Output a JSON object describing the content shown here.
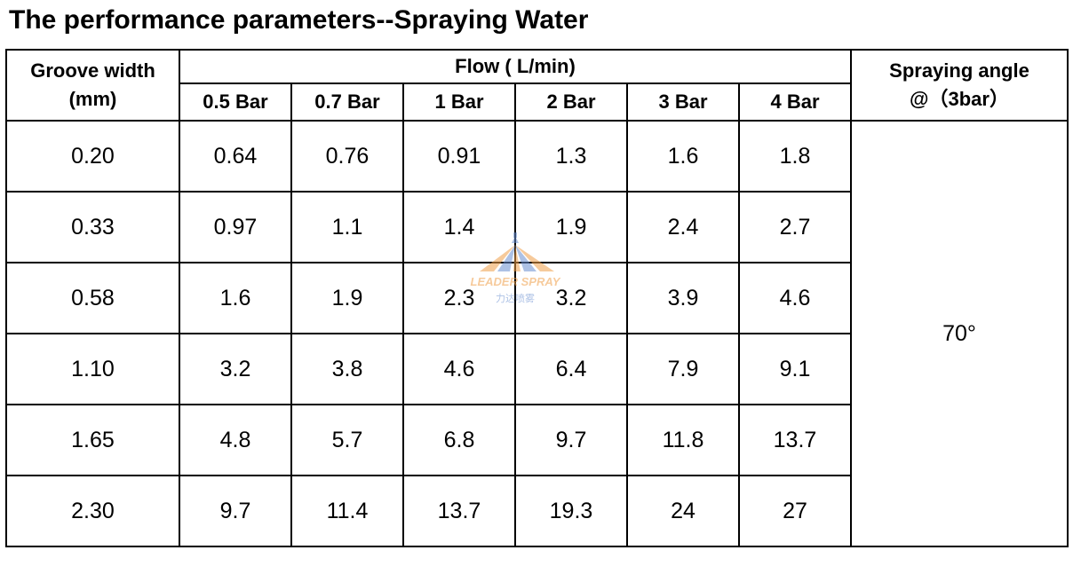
{
  "title": "The performance parameters--Spraying Water",
  "table": {
    "groove_header": [
      "Groove width",
      "(mm)"
    ],
    "flow_header": "Flow ( L/min)",
    "angle_header": [
      "Spraying angle",
      "@（3bar）"
    ],
    "pressures": [
      "0.5 Bar",
      "0.7 Bar",
      "1 Bar",
      "2 Bar",
      "3 Bar",
      "4 Bar"
    ],
    "rows": [
      {
        "groove": "0.20",
        "flows": [
          "0.64",
          "0.76",
          "0.91",
          "1.3",
          "1.6",
          "1.8"
        ]
      },
      {
        "groove": "0.33",
        "flows": [
          "0.97",
          "1.1",
          "1.4",
          "1.9",
          "2.4",
          "2.7"
        ]
      },
      {
        "groove": "0.58",
        "flows": [
          "1.6",
          "1.9",
          "2.3",
          "3.2",
          "3.9",
          "4.6"
        ]
      },
      {
        "groove": "1.10",
        "flows": [
          "3.2",
          "3.8",
          "4.6",
          "6.4",
          "7.9",
          "9.1"
        ]
      },
      {
        "groove": "1.65",
        "flows": [
          "4.8",
          "5.7",
          "6.8",
          "9.7",
          "11.8",
          "13.7"
        ]
      },
      {
        "groove": "2.30",
        "flows": [
          "9.7",
          "11.4",
          "13.7",
          "19.3",
          "24",
          "27"
        ]
      }
    ],
    "spraying_angle": "70°"
  },
  "watermark": {
    "text": "LEADER  SPRAY",
    "subtext": "力达喷雾",
    "colors": {
      "orange": "#f0a04a",
      "blue": "#6a8fd0"
    }
  }
}
